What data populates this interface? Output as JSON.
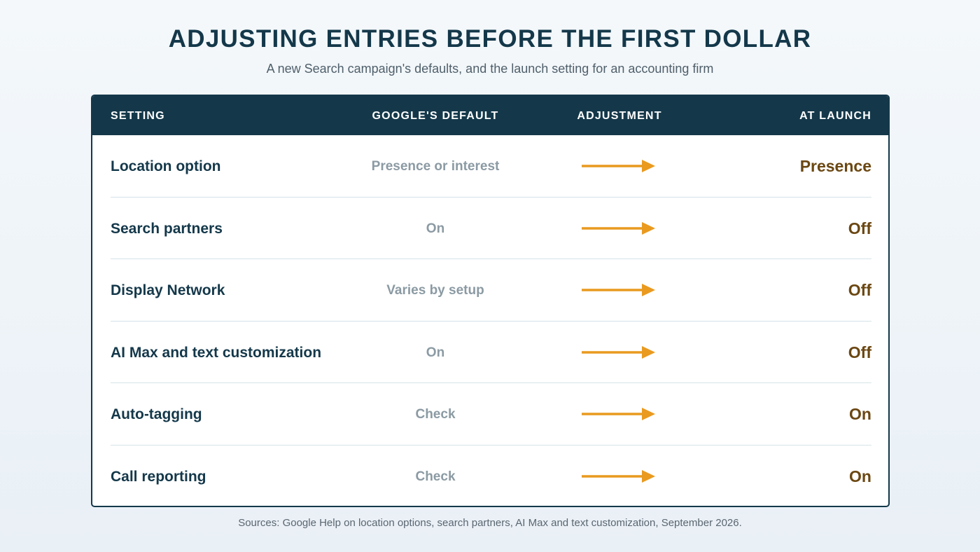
{
  "header": {
    "title": "ADJUSTING ENTRIES BEFORE THE FIRST DOLLAR",
    "subtitle": "A new Search campaign's defaults, and the launch setting for an accounting firm"
  },
  "table": {
    "columns": {
      "setting": "SETTING",
      "default": "GOOGLE'S DEFAULT",
      "adjustment": "ADJUSTMENT",
      "launch": "AT LAUNCH"
    },
    "rows": [
      {
        "setting": "Location option",
        "default": "Presence or interest",
        "launch": "Presence"
      },
      {
        "setting": "Search partners",
        "default": "On",
        "launch": "Off"
      },
      {
        "setting": "Display Network",
        "default": "Varies by setup",
        "launch": "Off"
      },
      {
        "setting": "AI Max and text customization",
        "default": "On",
        "launch": "Off"
      },
      {
        "setting": "Auto-tagging",
        "default": "Check",
        "launch": "On"
      },
      {
        "setting": "Call reporting",
        "default": "Check",
        "launch": "On"
      }
    ]
  },
  "icons": {
    "adjustment": "arrow-right-icon"
  },
  "colors": {
    "navy": "#14384a",
    "arrow": "#e99a1f",
    "launch_value": "#6b4712",
    "default_value": "#8b9aa3"
  },
  "footer": {
    "sources": "Sources: Google Help on location options, search partners, AI Max and text customization, September 2026."
  }
}
